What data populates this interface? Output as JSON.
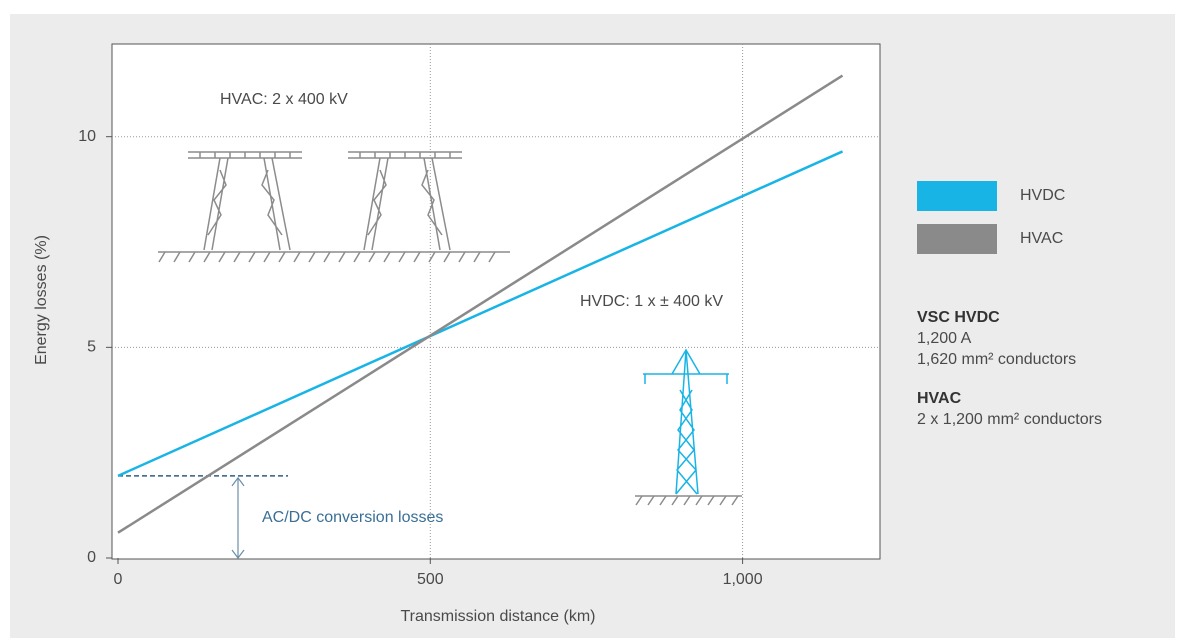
{
  "chart_data": {
    "type": "line",
    "xlabel": "Transmission distance (km)",
    "ylabel": "Energy losses (%)",
    "x": [
      0,
      1160
    ],
    "series": [
      {
        "name": "HVDC",
        "color": "#19b4e6",
        "values": [
          1.95,
          9.65
        ]
      },
      {
        "name": "HVAC",
        "color": "#8a8a8a",
        "values": [
          0.6,
          11.45
        ]
      }
    ],
    "xlim": [
      0,
      1220
    ],
    "ylim": [
      0,
      12.2
    ],
    "xticks": [
      0,
      500,
      {
        "value": 1000,
        "label": "1,000"
      }
    ],
    "yticks": [
      0,
      5,
      10
    ],
    "grid": true,
    "annotations": [
      "HVAC: 2 x 400 kV",
      "HVDC: 1 x ± 400 kV",
      "AC/DC conversion losses"
    ],
    "notes": [
      {
        "title": "VSC HVDC",
        "lines": [
          "1,200 A",
          "1,620 mm² conductors"
        ]
      },
      {
        "title": "HVAC",
        "lines": [
          "2 x 1,200 mm² conductors"
        ]
      }
    ]
  }
}
